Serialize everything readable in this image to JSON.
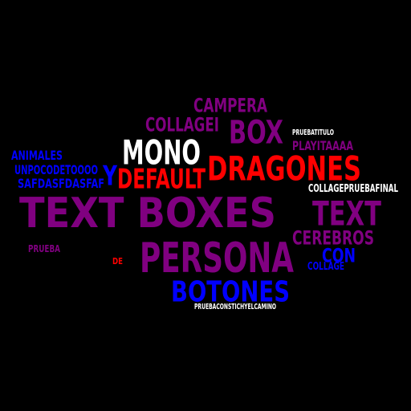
{
  "colors": {
    "background": "#000000",
    "purple": "#800080",
    "blue": "#0000FF",
    "red": "#FF0000",
    "white": "#FFFFFF"
  },
  "words": [
    {
      "key": "text_boxes",
      "text": "TEXT BOXES",
      "color": "#800080"
    },
    {
      "key": "persona",
      "text": "PERSONA",
      "color": "#800080"
    },
    {
      "key": "dragones",
      "text": "DRAGONES",
      "color": "#FF0000"
    },
    {
      "key": "botones",
      "text": "BOTONES",
      "color": "#0000FF"
    },
    {
      "key": "mono",
      "text": "MONO",
      "color": "#FFFFFF"
    },
    {
      "key": "text",
      "text": "TEXT",
      "color": "#800080"
    },
    {
      "key": "box",
      "text": "BOX",
      "color": "#800080"
    },
    {
      "key": "default",
      "text": "DEFAULT",
      "color": "#FF0000"
    },
    {
      "key": "campera",
      "text": "CAMPERA",
      "color": "#800080"
    },
    {
      "key": "collagei",
      "text": "COLLAGEI",
      "color": "#800080"
    },
    {
      "key": "cerebros",
      "text": "CEREBROS",
      "color": "#800080"
    },
    {
      "key": "y",
      "text": "Y",
      "color": "#0000FF"
    },
    {
      "key": "con",
      "text": "CON",
      "color": "#0000FF"
    },
    {
      "key": "animales",
      "text": "ANIMALES",
      "color": "#0000FF"
    },
    {
      "key": "unpocodetoooo",
      "text": "UNPOCODETOOOO",
      "color": "#0000FF"
    },
    {
      "key": "safdasfdasfaf",
      "text": "SAFDASFDASFAF",
      "color": "#0000FF"
    },
    {
      "key": "playitaaaa",
      "text": "PLAYITAAAA",
      "color": "#800080"
    },
    {
      "key": "pruebatitulo",
      "text": "PRUEBATITULO",
      "color": "#FFFFFF"
    },
    {
      "key": "collagepruebafinal",
      "text": "COLLAGEPRUEBAFINAL",
      "color": "#FFFFFF"
    },
    {
      "key": "collage",
      "text": "COLLAGE",
      "color": "#0000FF"
    },
    {
      "key": "prueba",
      "text": "PRUEBA",
      "color": "#800080"
    },
    {
      "key": "de",
      "text": "DE",
      "color": "#FF0000"
    },
    {
      "key": "pruebaconstichyelcamino",
      "text": "PRUEBACONSTICHYELCAMINO",
      "color": "#FFFFFF"
    }
  ]
}
